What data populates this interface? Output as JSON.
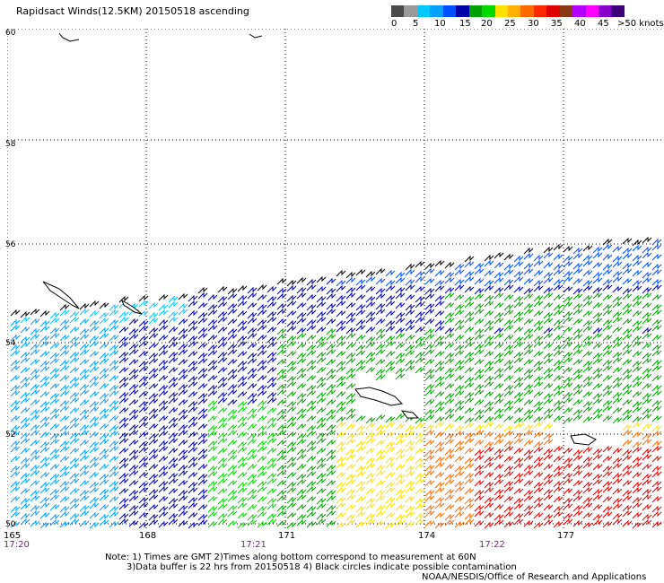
{
  "title": "Rapidsact Winds(12.5KM) 20150518 ascending",
  "legend": {
    "colors": [
      "#4a4a4a",
      "#9a9a9a",
      "#00c8ff",
      "#00a0ff",
      "#0050ff",
      "#0000a8",
      "#00a000",
      "#00d800",
      "#ffe000",
      "#ffb000",
      "#ff6a00",
      "#ff2800",
      "#e00000",
      "#8a3a12",
      "#b400ff",
      "#ff00ff",
      "#8800cc",
      "#3c0078"
    ],
    "labels": [
      "0",
      "5",
      "10",
      "15",
      "20",
      "25",
      "30",
      "35",
      "40",
      "45",
      ">50 knots"
    ]
  },
  "lat_labels": [
    "60",
    "58",
    "56",
    "54",
    "52",
    "50"
  ],
  "lon_labels": [
    "165",
    "168",
    "171",
    "174",
    "177"
  ],
  "time_labels": [
    "17:20",
    "17:21",
    "17:22"
  ],
  "notes": {
    "line1": "Note: 1) Times are GMT 2)Times along bottom correspond to measurement at 60N",
    "line2": "3)Data buffer is 22 hrs from 20150518 4) Black circles indicate possible contamination",
    "credit": "NOAA/NESDIS/Office of Research and Applications"
  }
}
